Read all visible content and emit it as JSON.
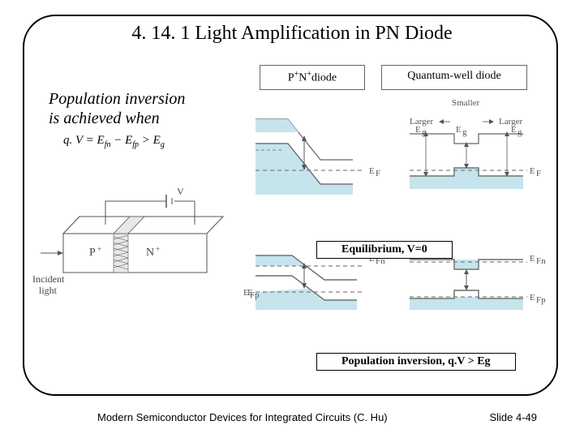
{
  "title": "4. 14. 1 Light Amplification in PN Diode",
  "population_inversion": {
    "line1": "Population inversion",
    "line2": "is achieved when"
  },
  "equation_html": "q. V = E<sub>fn</sub> − E<sub>fp</sub> > E<sub>g</sub>",
  "table_headers": {
    "pn_diode_html": "P<sup>+</sup>N<sup>+</sup>diode",
    "qw_diode": "Quantum-well diode"
  },
  "band_labels": {
    "smaller": "Smaller",
    "larger": "Larger",
    "Eg": "E",
    "Eg_sub": "g",
    "EF": "E",
    "EF_sub": "F",
    "EFn": "E",
    "EFn_sub": "Fn",
    "EFp": "E",
    "EFp_sub": "Fp"
  },
  "state_labels": {
    "equilibrium": "Equilibrium, V=0",
    "inversion": "Population inversion, q.V > Eg"
  },
  "device_labels": {
    "incident": "Incident",
    "light": "light",
    "P": "P",
    "N": "N",
    "plus": "+",
    "V": "V"
  },
  "footer": {
    "left": "Modern Semiconductor Devices for Integrated Circuits (C. Hu)",
    "right": "Slide 4-49"
  },
  "colors": {
    "fill_blue": "#c5e4ec",
    "line_gray": "#666666",
    "line_dark": "#444444",
    "black": "#000000"
  }
}
